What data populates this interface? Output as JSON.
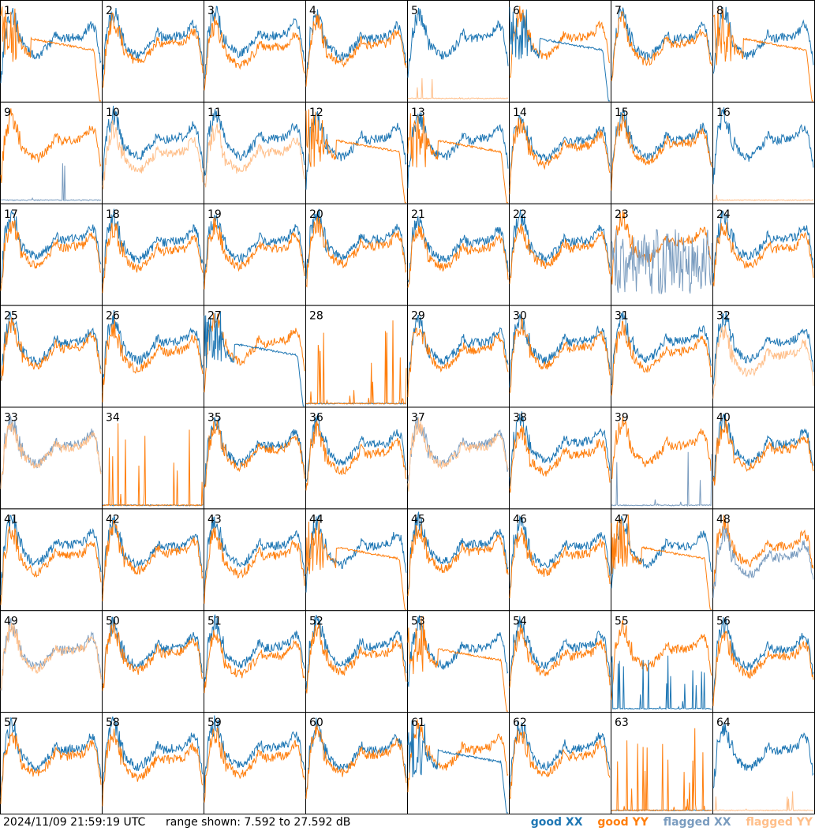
{
  "chart_data": {
    "type": "line",
    "layout": "8x8 grid of per-antenna spectrum panels",
    "panels": [
      "1",
      "2",
      "3",
      "4",
      "5",
      "6",
      "7",
      "8",
      "9",
      "10",
      "11",
      "12",
      "13",
      "14",
      "15",
      "16",
      "17",
      "18",
      "19",
      "20",
      "21",
      "22",
      "23",
      "24",
      "25",
      "26",
      "27",
      "28",
      "29",
      "30",
      "31",
      "32",
      "33",
      "34",
      "35",
      "36",
      "37",
      "38",
      "39",
      "40",
      "41",
      "42",
      "43",
      "44",
      "45",
      "46",
      "47",
      "48",
      "49",
      "50",
      "51",
      "52",
      "53",
      "54",
      "55",
      "56",
      "57",
      "58",
      "59",
      "60",
      "61",
      "62",
      "63",
      "64"
    ],
    "range_db": [
      7.592,
      27.592
    ],
    "series": [
      {
        "name": "good XX",
        "color": "#1f77b4"
      },
      {
        "name": "good YY",
        "color": "#ff7f0e"
      },
      {
        "name": "flagged XX",
        "color": "#7a9cbf"
      },
      {
        "name": "flagged YY",
        "color": "#ffbf8a"
      }
    ],
    "panel_kinds": {
      "normal": [
        "2",
        "3",
        "4",
        "7",
        "14",
        "15",
        "17",
        "18",
        "19",
        "20",
        "21",
        "22",
        "24",
        "25",
        "26",
        "29",
        "30",
        "31",
        "35",
        "36",
        "38",
        "40",
        "41",
        "42",
        "43",
        "45",
        "46",
        "50",
        "51",
        "52",
        "54",
        "56",
        "57",
        "58",
        "59",
        "60",
        "62"
      ],
      "yy_rolloff": [
        "1",
        "8",
        "12",
        "13",
        "44",
        "47",
        "53"
      ],
      "xx_rolloff": [
        "6",
        "27",
        "61"
      ],
      "xx_only": [
        "5",
        "16",
        "64"
      ],
      "yy_only": [
        "9",
        "39",
        "55"
      ],
      "both_flagged": [
        "33",
        "37",
        "49"
      ],
      "yy_flagged": [
        "10",
        "11",
        "32"
      ],
      "xx_flagged": [
        "23",
        "48"
      ],
      "dead": [
        "28",
        "34",
        "63"
      ]
    }
  },
  "footer": {
    "timestamp": "2024/11/09 21:59:19 UTC",
    "range_text": "range shown: 7.592 to 27.592 dB"
  },
  "legend": {
    "good_xx": "good XX",
    "good_yy": "good YY",
    "flagged_xx": "flagged XX",
    "flagged_yy": "flagged YY"
  }
}
